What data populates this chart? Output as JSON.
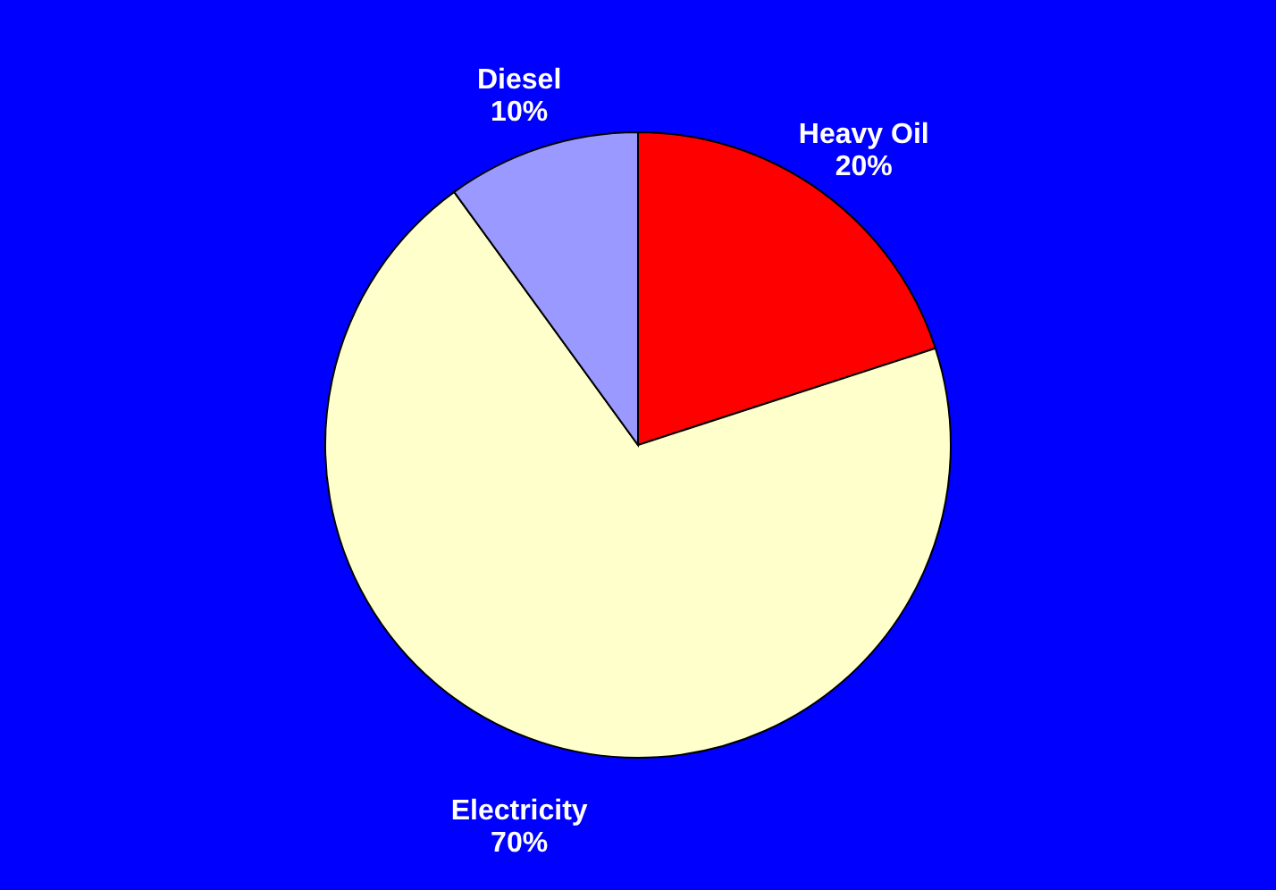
{
  "chart_data": {
    "type": "pie",
    "categories": [
      "Heavy Oil",
      "Electricity",
      "Diesel"
    ],
    "values": [
      20,
      70,
      10
    ],
    "colors": [
      "#ff0000",
      "#ffffcc",
      "#9999ff"
    ],
    "value_labels": [
      "20%",
      "70%",
      "10%"
    ],
    "legend": false
  }
}
